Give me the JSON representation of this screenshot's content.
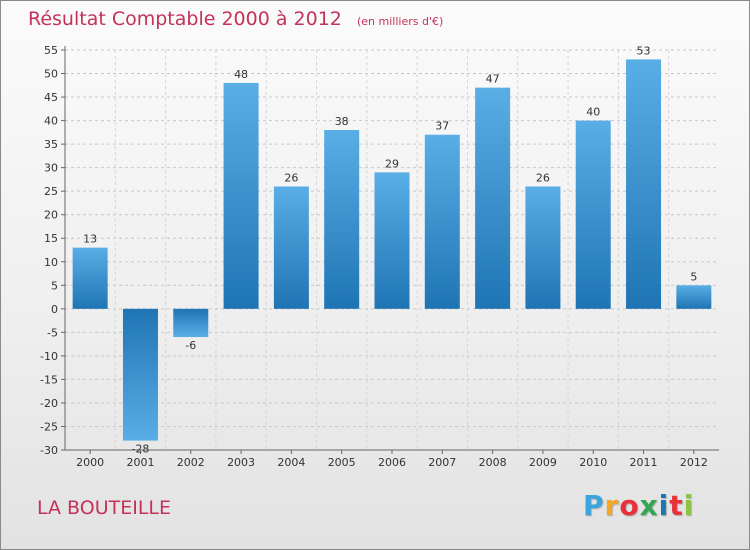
{
  "chart_data": {
    "type": "bar",
    "title": "Résultat Comptable 2000 à 2012",
    "subtitle": "(en milliers d'€)",
    "categories": [
      "2000",
      "2001",
      "2002",
      "2003",
      "2004",
      "2005",
      "2006",
      "2007",
      "2008",
      "2009",
      "2010",
      "2011",
      "2012"
    ],
    "values": [
      13,
      -28,
      -6,
      48,
      26,
      38,
      29,
      37,
      47,
      26,
      40,
      53,
      5
    ],
    "data_labels": [
      "13",
      "-28",
      "-6",
      "48",
      "26",
      "38",
      "29",
      "37",
      "47",
      "26",
      "40",
      "53",
      "5"
    ],
    "ylim": [
      -30,
      55
    ],
    "yticks": [
      55,
      50,
      45,
      40,
      35,
      30,
      25,
      20,
      15,
      10,
      5,
      0,
      -5,
      -10,
      -15,
      -20,
      -25,
      -30
    ],
    "ytick_labels": [
      "55",
      "50",
      "45",
      "40",
      "35",
      "30",
      "25",
      "20",
      "15",
      "10",
      "5",
      "0",
      "-5",
      "-10",
      "-15",
      "-20",
      "-25",
      "-30"
    ],
    "xlabel": "",
    "ylabel": "",
    "grid": true,
    "bar_color_light": "#5aaee6",
    "bar_color_dark": "#1f74b4"
  },
  "footer": {
    "commune": "LA BOUTEILLE"
  },
  "brand": {
    "letters": [
      "P",
      "r",
      "o",
      "x",
      "i",
      "t",
      "i"
    ],
    "colors": [
      "#3aa4dc",
      "#f5a623",
      "#e8313b",
      "#33a852",
      "#1f74b4",
      "#e8313b",
      "#8cc63f"
    ]
  },
  "colors": {
    "title": "#c4325a"
  }
}
